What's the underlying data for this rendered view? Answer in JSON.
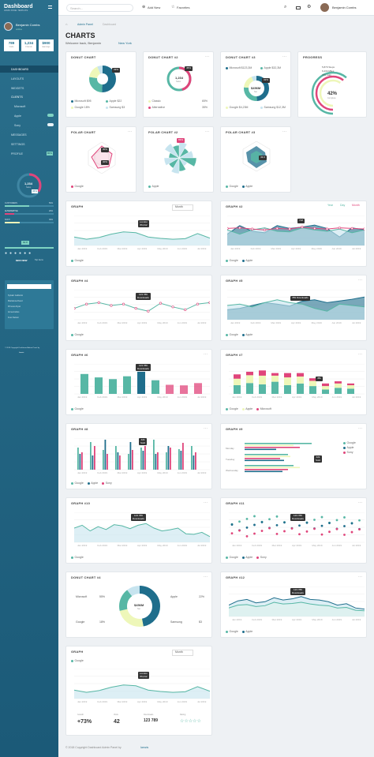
{
  "app": {
    "title": "Dashboard",
    "subtitle": "ADMIN PANEL TEMPLATE"
  },
  "topbar": {
    "search_placeholder": "Search...",
    "add_new": "Add New",
    "favorites": "Favorites",
    "user": "Benjamin Combs"
  },
  "profile": {
    "name": "Benjamin Combs",
    "status": "online",
    "stats": [
      {
        "value": "789",
        "label": "Visits"
      },
      {
        "value": "1,234",
        "label": "Friends"
      },
      {
        "value": "$900",
        "label": "Earnings"
      }
    ]
  },
  "nav": {
    "items": [
      "DASHBOARD",
      "LAYOUTS",
      "WIDGETS",
      "CLIENTS",
      "Microsoft",
      "Apple",
      "Sony",
      "MESSAGES",
      "SETTINGS",
      "PROFILE"
    ],
    "profile_badge": "80%"
  },
  "gauge": {
    "value": "1,234",
    "sub": "Sales",
    "badge": "36%",
    "rows": [
      {
        "label": "CUSTOMERS",
        "pct": "50%"
      },
      {
        "label": "ALTERNATIVE",
        "pct": "20%"
      },
      {
        "label": "SONY",
        "pct": "30%"
      }
    ],
    "meter": "82.8",
    "rating": "$900 NEW",
    "rating_sub": "Top Guns"
  },
  "tasks": {
    "items": [
      "Sylvain Guillemin",
      "Marielena Alvesz",
      "Princess Ryan",
      "Anna Andrés",
      "Fuss Nelson"
    ]
  },
  "footer": {
    "copyright": "© 2018 Copyright Dashboard Admin Panel by",
    "brand": "Iamzis",
    "side_copyright": "© 2018 Copyright Dashboard Admin Panel by",
    "side_brand": "Iamzis"
  },
  "page": {
    "breadcrumb": [
      "Admin Panel",
      "Dashboard"
    ],
    "title": "CHARTS",
    "welcome": "Welcome back, Benjamin",
    "location": "New York"
  },
  "cards": {
    "donut1": {
      "title": "DONUT CHART",
      "label": "33%",
      "legend": [
        {
          "name": "Microsoft",
          "v": "$95"
        },
        {
          "name": "Apple",
          "v": "$22"
        },
        {
          "name": "Google",
          "v": "18%"
        },
        {
          "name": "Samsung",
          "v": "$3"
        }
      ]
    },
    "donut2": {
      "title": "DONUT CHART #2",
      "label": "45%",
      "center": "1,234",
      "center_sub": "Sales",
      "legend": [
        {
          "name": "Classic",
          "v": "65%"
        },
        {
          "name": "Alternative",
          "v": "35%"
        }
      ]
    },
    "donut3": {
      "title": "DONUT CHART #3",
      "label": "32%",
      "center": "$456M",
      "center_sub": "Net",
      "legend": [
        {
          "name": "Microsoft $123,3M",
          "v": ""
        },
        {
          "name": "Apple $32,3M",
          "v": ""
        },
        {
          "name": "Google $4,23M",
          "v": ""
        },
        {
          "name": "Samsung $12,3M",
          "v": ""
        }
      ]
    },
    "progress": {
      "title": "PROGRESS",
      "center": "42%",
      "center_sub": "Complete",
      "lines": [
        "5,879 Steps",
        "6,234 Miles",
        "789 Cals"
      ]
    },
    "polar1": {
      "title": "POLAR CHART",
      "label": "30%",
      "label2": "30%",
      "legend": [
        "Google"
      ]
    },
    "polar2": {
      "title": "POLAR CHART #2",
      "label": "83%",
      "legend": [
        "Apple"
      ]
    },
    "polar3": {
      "title": "POLAR CHART #3",
      "label": "43.3",
      "legend": [
        "Google",
        "Apple"
      ]
    },
    "graph1": {
      "title": "GRAPH",
      "select": "Month",
      "tip": "London",
      "tip2": "86,012",
      "legend": [
        "Google"
      ]
    },
    "graph2": {
      "title": "GRAPH #2",
      "tabs": [
        "Year",
        "Day",
        "Month"
      ],
      "tip": "718",
      "legend": [
        "Google",
        "Apple"
      ]
    },
    "graph4": {
      "title": "GRAPH #4",
      "tip": "123 789",
      "tip2": "Downloads",
      "legend": [
        "Google"
      ]
    },
    "graph5": {
      "title": "GRAPH #5",
      "tip": "789 Downloads",
      "legend": [
        "Google",
        "Apple"
      ]
    },
    "graph6": {
      "title": "GRAPH #6",
      "tip": "123 789",
      "tip2": "Downloads",
      "legend": [
        "Google"
      ]
    },
    "graph7": {
      "title": "GRAPH #7",
      "tip": "45k",
      "legend": [
        "Google",
        "Apple",
        "Microsoft"
      ]
    },
    "graph8": {
      "title": "GRAPH #8",
      "tip": "42k",
      "tip2": "Sold",
      "legend": [
        "Google",
        "Apple",
        "Sony"
      ]
    },
    "graph9": {
      "title": "GRAPH #9",
      "tip": "42k",
      "tip2": "Sold",
      "rows": [
        "Monday",
        "Tuesday",
        "Wednesday"
      ],
      "legend": [
        "Google",
        "Apple",
        "Sony"
      ]
    },
    "graph10": {
      "title": "GRAPH #10",
      "tip": "123 789",
      "tip2": "Downloads",
      "legend": [
        "Google"
      ]
    },
    "graph11": {
      "title": "GRAPH #11",
      "tip": "123 789",
      "tip2": "Downloads",
      "legend": [
        "Google",
        "Apple",
        "Sony"
      ]
    },
    "donut4": {
      "title": "DONUT CHART #4",
      "center": "$456M",
      "center_sub": "Net",
      "left": [
        {
          "name": "Microsoft",
          "v": "55%"
        },
        {
          "name": "Google",
          "v": "18%"
        }
      ],
      "right": [
        {
          "name": "Apple",
          "v": "22%"
        },
        {
          "name": "Samsung",
          "v": "$3"
        }
      ]
    },
    "graph12": {
      "title": "GRAPH #12",
      "tip": "123 789",
      "tip2": "Downloads",
      "legend": [
        "Google",
        "Apple"
      ]
    },
    "graph13": {
      "title": "GRAPH",
      "select": "Month",
      "tip": "London",
      "tip2": "86,012",
      "legend": [
        "Google"
      ],
      "stats": [
        {
          "v": "+73%",
          "l": "Growth"
        },
        {
          "v": "42",
          "l": "Visits"
        },
        {
          "v": "123 789",
          "l": "Downloads"
        },
        {
          "v": "",
          "l": "Rating"
        }
      ]
    }
  },
  "xticks": [
    "Jan 2019",
    "Feb 2019",
    "Mar 2019",
    "Apr 2019",
    "May 2019",
    "Jun 2019",
    "Jul 2019"
  ],
  "colors": {
    "teal": "#57b7a5",
    "blue": "#1f6e8c",
    "pink": "#e0457b",
    "yellow": "#eef7b9",
    "lightblue": "#c7e4ef"
  }
}
